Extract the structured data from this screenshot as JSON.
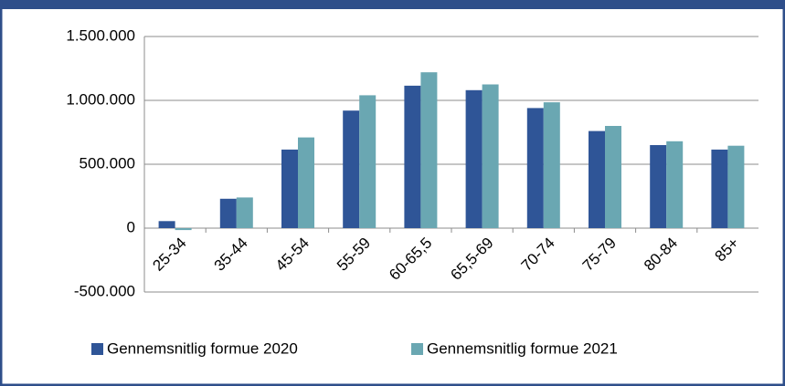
{
  "chart_data": {
    "type": "bar",
    "categories": [
      "25-34",
      "35-44",
      "45-54",
      "55-59",
      "60-65,5",
      "65,5-69",
      "70-74",
      "75-79",
      "80-84",
      "85+"
    ],
    "series": [
      {
        "name": "Gennemsnitlig formue 2020",
        "color": "#2f5597",
        "values": [
          55000,
          230000,
          615000,
          920000,
          1115000,
          1080000,
          940000,
          760000,
          650000,
          615000
        ]
      },
      {
        "name": "Gennemsnitlig formue 2021",
        "color": "#6aa7b2",
        "values": [
          -15000,
          240000,
          710000,
          1040000,
          1220000,
          1125000,
          985000,
          800000,
          680000,
          645000
        ]
      }
    ],
    "ylim": [
      -500000,
      1500000
    ],
    "yticks": [
      {
        "value": -500000,
        "label": "-500.000"
      },
      0,
      {
        "value": 500000,
        "label": "500.000"
      },
      {
        "value": 1000000,
        "label": "1.000.000"
      },
      {
        "value": 1500000,
        "label": "1.500.000"
      }
    ],
    "grid": true,
    "legend": "bottom"
  }
}
